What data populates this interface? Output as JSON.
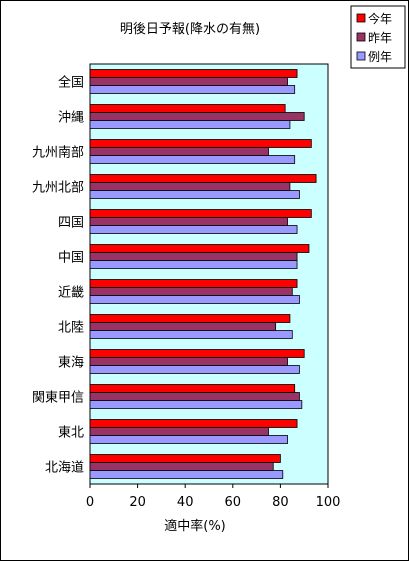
{
  "chart_data": {
    "type": "bar",
    "orientation": "horizontal",
    "title": "明後日予報(降水の有無)",
    "xlabel": "適中率(%)",
    "ylabel": "",
    "xlim": [
      0,
      100
    ],
    "x_ticks": [
      "0",
      "20",
      "40",
      "60",
      "80",
      "100"
    ],
    "grid": false,
    "legend_position": "top-right",
    "plot_background": "#ccffff",
    "categories": [
      "全国",
      "沖縄",
      "九州南部",
      "九州北部",
      "四国",
      "中国",
      "近畿",
      "北陸",
      "東海",
      "関東甲信",
      "東北",
      "北海道"
    ],
    "series": [
      {
        "name": "今年",
        "color": "#ff0000",
        "values": [
          87,
          82,
          93,
          95,
          93,
          92,
          87,
          84,
          90,
          86,
          87,
          80
        ]
      },
      {
        "name": "昨年",
        "color": "#993366",
        "values": [
          83,
          90,
          75,
          84,
          83,
          87,
          85,
          78,
          83,
          88,
          75,
          77
        ]
      },
      {
        "name": "例年",
        "color": "#9999ff",
        "values": [
          86,
          84,
          86,
          88,
          87,
          87,
          88,
          85,
          88,
          89,
          83,
          81
        ]
      }
    ]
  }
}
